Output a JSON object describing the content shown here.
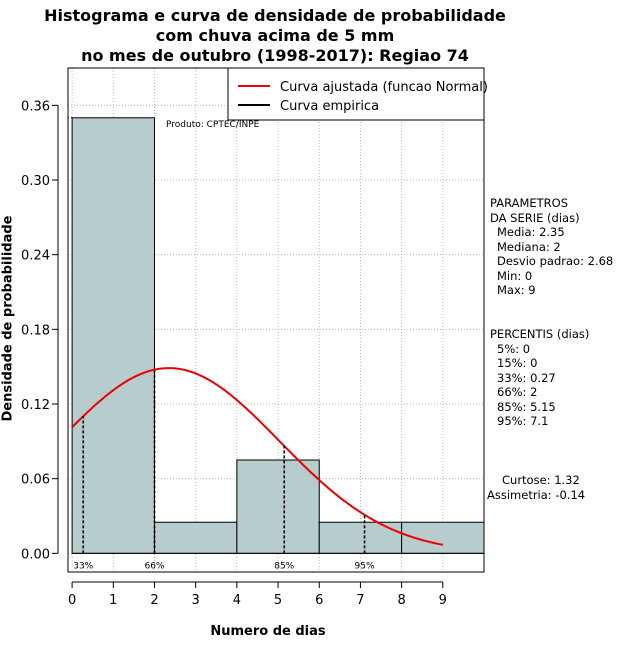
{
  "chart_data": {
    "type": "histogram",
    "title_lines": [
      "Histograma e curva de densidade de probabilidade",
      "com chuva acima de 5 mm",
      "no mes de outubro (1998-2017): Regiao 74"
    ],
    "xlabel": "Numero de dias",
    "ylabel": "Densidade de probabilidade",
    "xlim": [
      -0.1,
      10
    ],
    "ylim": [
      -0.015,
      0.39
    ],
    "x_ticks": [
      0,
      1,
      2,
      3,
      4,
      5,
      6,
      7,
      8,
      9
    ],
    "y_ticks": [
      0.0,
      0.06,
      0.12,
      0.18,
      0.24,
      0.3,
      0.36
    ],
    "y_tick_labels": [
      "0.00",
      "0.06",
      "0.12",
      "0.18",
      "0.24",
      "0.30",
      "0.36"
    ],
    "grid": true,
    "bins": [
      {
        "x0": 0,
        "x1": 2,
        "density": 0.35
      },
      {
        "x0": 2,
        "x1": 4,
        "density": 0.025
      },
      {
        "x0": 4,
        "x1": 6,
        "density": 0.075
      },
      {
        "x0": 6,
        "x1": 8,
        "density": 0.025
      },
      {
        "x0": 8,
        "x1": 10,
        "density": 0.025
      }
    ],
    "normal_curve": {
      "mean": 2.35,
      "sd": 2.68,
      "x_from": 0,
      "x_to": 9
    },
    "percentile_markers": [
      {
        "label": "33%",
        "x": 0.27
      },
      {
        "label": "66%",
        "x": 2
      },
      {
        "label": "85%",
        "x": 5.15
      },
      {
        "label": "95%",
        "x": 7.1
      }
    ],
    "legend": {
      "position": "top-right",
      "entries": [
        {
          "label": "Curva ajustada (funcao Normal)",
          "color": "#ee0000"
        },
        {
          "label": "Curva empirica",
          "color": "#000000"
        }
      ]
    },
    "annotation": "Produto: CPTEC/INPE",
    "colors": {
      "bar_fill": "#b7cccc",
      "grid": "#b8b8b8",
      "normal": "#ee0000"
    }
  },
  "side_panel": {
    "parametros": [
      "PARAMETROS",
      "DA SERIE (dias)",
      "  Media: 2.35",
      "  Mediana: 2",
      "  Desvio padrao: 2.68",
      "  Min: 0",
      "  Max: 9"
    ],
    "percentis": [
      "PERCENTIS (dias)",
      "  5%: 0",
      "  15%: 0",
      "  33%: 0.27",
      "  66%: 2",
      "  85%: 5.15",
      "  95%: 7.1"
    ],
    "curtose": "Curtose: 1.32",
    "assimetria": "Assimetria: -0.14"
  }
}
